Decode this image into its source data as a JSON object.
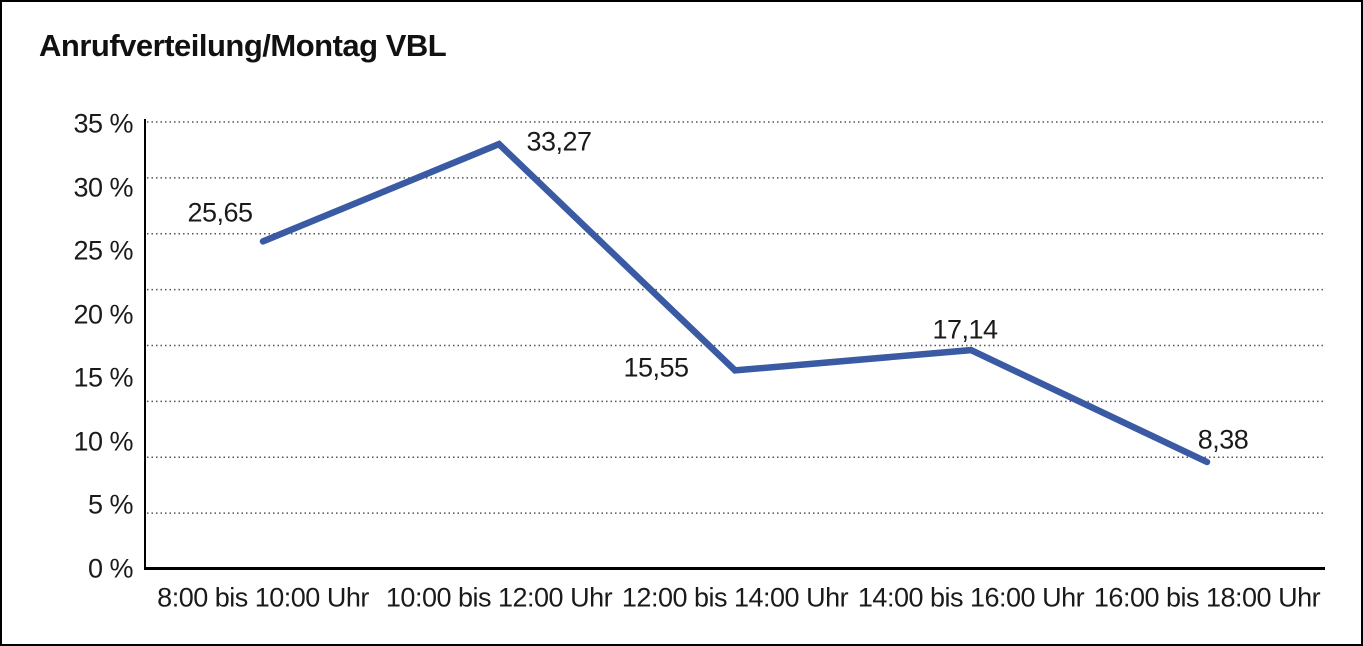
{
  "window": {
    "background": "#ffffff",
    "border_color": "#000000"
  },
  "chart_data": {
    "type": "line",
    "title": "Anrufverteilung/Montag VBL",
    "categories": [
      "8:00 bis 10:00 Uhr",
      "10:00 bis 12:00 Uhr",
      "12:00 bis 14:00 Uhr",
      "14:00 bis 16:00 Uhr",
      "16:00 bis 18:00 Uhr"
    ],
    "values": [
      25.65,
      33.27,
      15.55,
      17.14,
      8.38
    ],
    "data_labels": [
      "25,65",
      "33,27",
      "15,55",
      "17,14",
      "8,38"
    ],
    "y_ticks": [
      {
        "label": "35 %",
        "value": 35
      },
      {
        "label": "30 %",
        "value": 30
      },
      {
        "label": "25 %",
        "value": 25
      },
      {
        "label": "20 %",
        "value": 20
      },
      {
        "label": "15 %",
        "value": 15
      },
      {
        "label": "10 %",
        "value": 10
      },
      {
        "label": "5 %",
        "value": 5
      },
      {
        "label": "0 %",
        "value": 0
      }
    ],
    "ylim": [
      0,
      35
    ],
    "xlabel": "",
    "ylabel": "",
    "grid": "horizontal-dotted",
    "gridline_count": 9,
    "legend": "none",
    "line_color": "#3a5aa4",
    "axis_color": "#000000",
    "gridline_color": "#555555",
    "text_color": "#1a1a1a"
  }
}
